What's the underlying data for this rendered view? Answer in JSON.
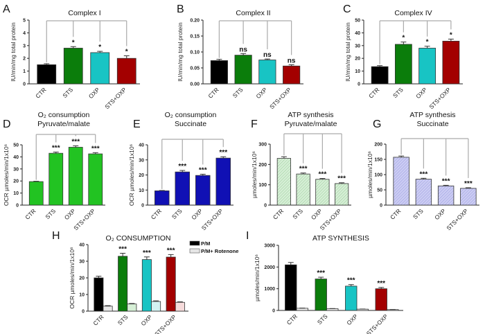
{
  "chart_data": [
    {
      "panel": "A",
      "type": "bar",
      "title": [
        "Complex I"
      ],
      "ylabel": "IU/min/mg total protein",
      "ylim": [
        0,
        5
      ],
      "yticks": [
        0,
        1,
        2,
        3,
        4,
        5
      ],
      "tick_decimals": 0,
      "categories": [
        "CTR",
        "STS",
        "OXP",
        "STS+OXP"
      ],
      "values": [
        1.5,
        2.8,
        2.45,
        2.0
      ],
      "errors": [
        0.08,
        0.12,
        0.1,
        0.2
      ],
      "significance": [
        "",
        "*",
        "*",
        "*"
      ],
      "colors": [
        "#000000",
        "#0b7d0b",
        "#18c4c4",
        "#a30000"
      ],
      "hatched": false,
      "bracket": true
    },
    {
      "panel": "B",
      "type": "bar",
      "title": [
        "Complex II"
      ],
      "ylabel": "IU/min/mg total protein",
      "ylim": [
        0,
        0.2
      ],
      "yticks": [
        0,
        0.05,
        0.1,
        0.15,
        0.2
      ],
      "tick_decimals": 2,
      "categories": [
        "CTR",
        "STS",
        "OXP",
        "STS+OXP"
      ],
      "values": [
        0.073,
        0.09,
        0.075,
        0.056
      ],
      "errors": [
        0.004,
        0.005,
        0.003,
        0.004
      ],
      "significance": [
        "",
        "ns",
        "ns",
        "ns"
      ],
      "colors": [
        "#000000",
        "#0b7d0b",
        "#18c4c4",
        "#a30000"
      ],
      "hatched": false,
      "bracket": true
    },
    {
      "panel": "C",
      "type": "bar",
      "title": [
        "Complex IV"
      ],
      "ylabel": "IU/min/mg total protein",
      "ylim": [
        0,
        50
      ],
      "yticks": [
        0,
        10,
        20,
        30,
        40,
        50
      ],
      "tick_decimals": 0,
      "categories": [
        "CTR",
        "STS",
        "OXP",
        "STS+OXP"
      ],
      "values": [
        13.5,
        31,
        28,
        33.5
      ],
      "errors": [
        0.8,
        1.8,
        1.5,
        1.6
      ],
      "significance": [
        "",
        "*",
        "*",
        "*"
      ],
      "colors": [
        "#000000",
        "#0b7d0b",
        "#18c4c4",
        "#a30000"
      ],
      "hatched": false,
      "bracket": true
    },
    {
      "panel": "D",
      "type": "bar",
      "title": [
        "O₂ consumption",
        "Pyruvate/malate"
      ],
      "ylabel": "OCR µmoles/min/1x10⁶",
      "ylim": [
        0,
        50
      ],
      "yticks": [
        0,
        10,
        20,
        30,
        40,
        50
      ],
      "tick_decimals": 0,
      "categories": [
        "CTR",
        "STS",
        "OXP",
        "STS+OXP"
      ],
      "values": [
        19.5,
        43,
        48,
        42.5
      ],
      "errors": [
        0.3,
        1.0,
        1.2,
        1.0
      ],
      "significance": [
        "",
        "***",
        "***",
        "***"
      ],
      "colors": [
        "#22c322",
        "#22c322",
        "#22c322",
        "#22c322"
      ],
      "hatched": false,
      "bracket": true
    },
    {
      "panel": "E",
      "type": "bar",
      "title": [
        "O₂ consumption",
        "Succinate"
      ],
      "ylabel": "OCR µmoles/min/1x10⁶",
      "ylim": [
        0,
        40
      ],
      "yticks": [
        0,
        10,
        20,
        30,
        40
      ],
      "tick_decimals": 0,
      "categories": [
        "CTR",
        "STS",
        "OXP",
        "STS+OXP"
      ],
      "values": [
        9.5,
        22,
        19.7,
        31.2
      ],
      "errors": [
        0.2,
        1.0,
        0.8,
        0.9
      ],
      "significance": [
        "",
        "***",
        "***",
        "***"
      ],
      "colors": [
        "#1010b4",
        "#1010b4",
        "#1010b4",
        "#1010b4"
      ],
      "hatched": false,
      "bracket": true
    },
    {
      "panel": "F",
      "type": "bar",
      "title": [
        "ATP synthesis",
        "Pyruvate/malate"
      ],
      "ylabel": "µmoles/min/1x10⁶",
      "ylim": [
        0,
        300
      ],
      "yticks": [
        0,
        100,
        200,
        300
      ],
      "tick_decimals": 0,
      "categories": [
        "CTR",
        "STS",
        "OXP",
        "STS+OXP"
      ],
      "values": [
        230,
        153,
        127,
        106
      ],
      "errors": [
        8,
        5,
        4,
        4
      ],
      "significance": [
        "",
        "***",
        "***",
        "***"
      ],
      "colors": [
        "#d6efd6",
        "#d6efd6",
        "#d6efd6",
        "#d6efd6"
      ],
      "hatched": true,
      "bracket": true
    },
    {
      "panel": "G",
      "type": "bar",
      "title": [
        "ATP synthesis",
        "Succinate"
      ],
      "ylabel": "µmoles/min/1x10⁶",
      "ylim": [
        0,
        200
      ],
      "yticks": [
        0,
        50,
        100,
        150,
        200
      ],
      "tick_decimals": 0,
      "categories": [
        "CTR",
        "STS",
        "OXP",
        "STS+OXP"
      ],
      "values": [
        157,
        85,
        63,
        55
      ],
      "errors": [
        4,
        3,
        2,
        2
      ],
      "significance": [
        "",
        "***",
        "***",
        "***"
      ],
      "colors": [
        "#cccdf3",
        "#cccdf3",
        "#cccdf3",
        "#cccdf3"
      ],
      "hatched": true,
      "bracket": true
    },
    {
      "panel": "H",
      "type": "grouped-bar",
      "title": [
        "O₂ CONSUMPTION"
      ],
      "ylabel": "OCR µmoles/min/1x10⁶",
      "ylim": [
        0,
        40
      ],
      "yticks": [
        0,
        10,
        20,
        30,
        40
      ],
      "tick_decimals": 0,
      "categories": [
        "CTR",
        "STS",
        "OXP",
        "STS+OXP"
      ],
      "colors": [
        "#000000",
        "#0b7d0b",
        "#18c4c4",
        "#a30000"
      ],
      "significance": [
        "",
        "***",
        "***",
        "***"
      ],
      "series": [
        {
          "name": "P/M",
          "values": [
            20,
            33,
            31,
            32.5
          ],
          "errors": [
            1.0,
            1.8,
            1.6,
            1.5
          ]
        },
        {
          "name": "P/M+ Rotenone",
          "values": [
            3,
            4.3,
            5.8,
            5.3
          ],
          "errors": [
            0.3,
            0.3,
            0.4,
            0.3
          ]
        }
      ],
      "legend": "top-right",
      "bracket": false
    },
    {
      "panel": "I",
      "type": "grouped-bar",
      "title": [
        "ATP SYNTHESIS"
      ],
      "ylabel": "µmoles/min/1x10⁶",
      "ylim": [
        0,
        3000
      ],
      "yticks": [
        0,
        1000,
        2000,
        3000
      ],
      "tick_decimals": 0,
      "categories": [
        "CTR",
        "STS",
        "OXP",
        "STS+OXP"
      ],
      "colors": [
        "#000000",
        "#0b7d0b",
        "#18c4c4",
        "#a30000"
      ],
      "significance": [
        "",
        "***",
        "***",
        "***"
      ],
      "series": [
        {
          "name": "P/M",
          "values": [
            2100,
            1450,
            1120,
            1000
          ],
          "errors": [
            110,
            80,
            70,
            60
          ]
        },
        {
          "name": "P/M+ Rotenone",
          "values": [
            100,
            80,
            60,
            40
          ],
          "errors": [
            10,
            8,
            6,
            5
          ]
        }
      ],
      "bracket": false
    }
  ]
}
